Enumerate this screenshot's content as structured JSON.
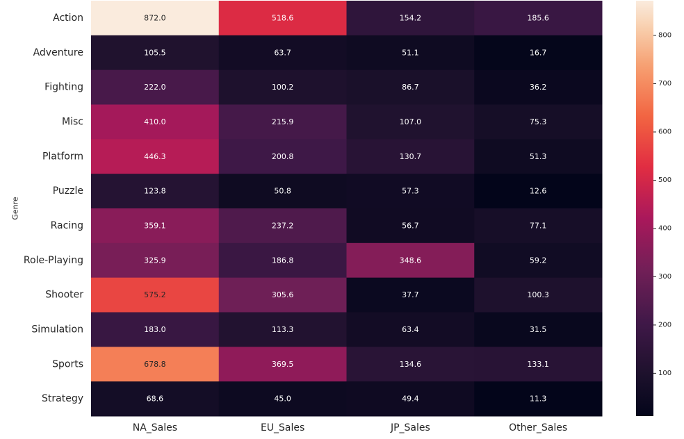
{
  "chart_data": {
    "type": "heatmap",
    "ylabel": "Genre",
    "xlabel": "",
    "rows": [
      "Action",
      "Adventure",
      "Fighting",
      "Misc",
      "Platform",
      "Puzzle",
      "Racing",
      "Role-Playing",
      "Shooter",
      "Simulation",
      "Sports",
      "Strategy"
    ],
    "columns": [
      "NA_Sales",
      "EU_Sales",
      "JP_Sales",
      "Other_Sales"
    ],
    "values": [
      [
        872.0,
        518.6,
        154.2,
        185.6
      ],
      [
        105.5,
        63.7,
        51.1,
        16.7
      ],
      [
        222.0,
        100.2,
        86.7,
        36.2
      ],
      [
        410.0,
        215.9,
        107.0,
        75.3
      ],
      [
        446.3,
        200.8,
        130.7,
        51.3
      ],
      [
        123.8,
        50.8,
        57.3,
        12.6
      ],
      [
        359.1,
        237.2,
        56.7,
        77.1
      ],
      [
        325.9,
        186.8,
        348.6,
        59.2
      ],
      [
        575.2,
        305.6,
        37.7,
        100.3
      ],
      [
        183.0,
        113.3,
        63.4,
        31.5
      ],
      [
        678.8,
        369.5,
        134.6,
        133.1
      ],
      [
        68.6,
        45.0,
        49.4,
        11.3
      ]
    ],
    "value_format": "0.1f",
    "colormap": "rocket",
    "colorbar": {
      "range": [
        11.3,
        872.0
      ],
      "ticks": [
        100,
        200,
        300,
        400,
        500,
        600,
        700,
        800
      ],
      "placement": "right"
    }
  }
}
